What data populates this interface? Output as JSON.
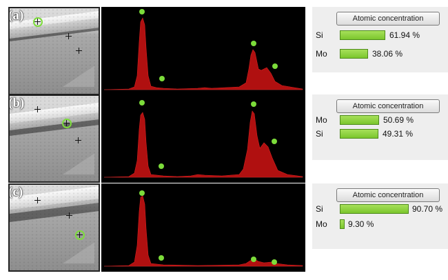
{
  "header_label": "Atomic concentration",
  "colors": {
    "peak": "#b01010",
    "marker": "#7cdc3a",
    "bar": "#8ed23e"
  },
  "panels": [
    {
      "label": "(a)",
      "concentrations": [
        {
          "element": "Si",
          "percent": "61.94 %",
          "fraction": 0.6194
        },
        {
          "element": "Mo",
          "percent": "38.06 %",
          "fraction": 0.3806
        }
      ]
    },
    {
      "label": "(b)",
      "concentrations": [
        {
          "element": "Mo",
          "percent": "50.69 %",
          "fraction": 0.5069
        },
        {
          "element": "Si",
          "percent": "49.31 %",
          "fraction": 0.4931
        }
      ]
    },
    {
      "label": "(c)",
      "concentrations": [
        {
          "element": "Si",
          "percent": "90.70 %",
          "fraction": 0.907
        },
        {
          "element": "Mo",
          "percent": "9.30 %",
          "fraction": 0.093
        }
      ]
    }
  ]
}
